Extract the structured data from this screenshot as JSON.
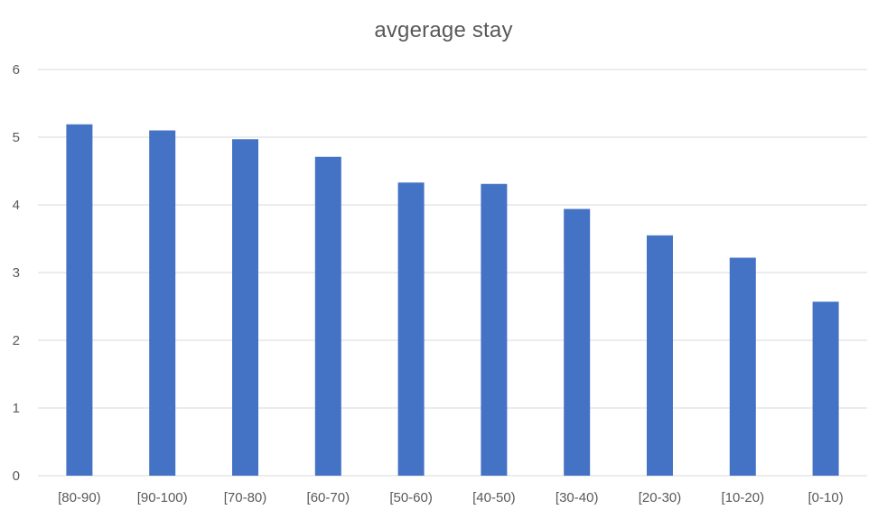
{
  "chart_data": {
    "type": "bar",
    "title": "avgerage stay",
    "xlabel": "",
    "ylabel": "",
    "categories": [
      "[80-90)",
      "[90-100)",
      "[70-80)",
      "[60-70)",
      "[50-60)",
      "[40-50)",
      "[30-40)",
      "[20-30)",
      "[10-20)",
      "[0-10)"
    ],
    "values": [
      5.19,
      5.1,
      4.97,
      4.71,
      4.33,
      4.31,
      3.94,
      3.55,
      3.22,
      2.57
    ],
    "ylim": [
      0,
      6
    ],
    "yticks": [
      0,
      1,
      2,
      3,
      4,
      5,
      6
    ],
    "grid": true,
    "legend": "none",
    "colors": {
      "bar": "#4472C4",
      "grid": "#D9D9D9",
      "text": "#595959"
    }
  }
}
